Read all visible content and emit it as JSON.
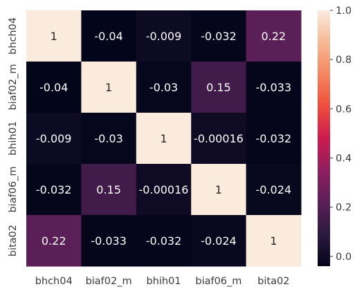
{
  "chart_data": {
    "type": "heatmap",
    "title": "",
    "x_labels": [
      "bhch04",
      "biaf02_m",
      "bhih01",
      "biaf06_m",
      "bita02"
    ],
    "y_labels": [
      "bhch04",
      "biaf02_m",
      "bhih01",
      "biaf06_m",
      "bita02"
    ],
    "values": [
      [
        1,
        -0.04,
        -0.009,
        -0.032,
        0.22
      ],
      [
        -0.04,
        1,
        -0.03,
        0.15,
        -0.033
      ],
      [
        -0.009,
        -0.03,
        1,
        -0.00016,
        -0.032
      ],
      [
        -0.032,
        0.15,
        -0.00016,
        1,
        -0.024
      ],
      [
        0.22,
        -0.033,
        -0.032,
        -0.024,
        1
      ]
    ],
    "annotations": [
      [
        "1",
        "-0.04",
        "-0.009",
        "-0.032",
        "0.22"
      ],
      [
        "-0.04",
        "1",
        "-0.03",
        "0.15",
        "-0.033"
      ],
      [
        "-0.009",
        "-0.03",
        "1",
        "-0.00016",
        "-0.032"
      ],
      [
        "-0.032",
        "0.15",
        "-0.00016",
        "1",
        "-0.024"
      ],
      [
        "0.22",
        "-0.033",
        "-0.032",
        "-0.024",
        "1"
      ]
    ],
    "colorbar": {
      "vmin": -0.04,
      "vmax": 1.0,
      "ticks": [
        0.0,
        0.2,
        0.4,
        0.6,
        0.8,
        1.0
      ],
      "tick_labels": [
        "0.0",
        "0.2",
        "0.4",
        "0.6",
        "0.8",
        "1.0"
      ]
    },
    "colormap": "rocket",
    "colormap_stops": [
      {
        "t": 0.0,
        "color": "#03051a"
      },
      {
        "t": 0.125,
        "color": "#2b1a3f"
      },
      {
        "t": 0.25,
        "color": "#5b1f57"
      },
      {
        "t": 0.375,
        "color": "#8f1f5f"
      },
      {
        "t": 0.5,
        "color": "#cb1b4f"
      },
      {
        "t": 0.625,
        "color": "#ef4d3d"
      },
      {
        "t": 0.75,
        "color": "#f4875f"
      },
      {
        "t": 0.875,
        "color": "#f6b995"
      },
      {
        "t": 1.0,
        "color": "#faebdd"
      }
    ],
    "grid": false,
    "legend": "colorbar-right"
  }
}
